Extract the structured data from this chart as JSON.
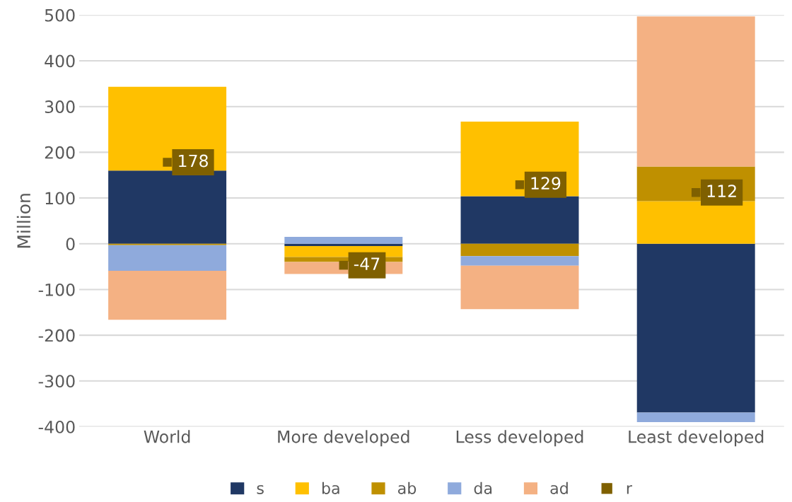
{
  "chart_data": {
    "type": "bar",
    "stacked": true,
    "ylabel": "Million",
    "categories": [
      "World",
      "More developed",
      "Less developed",
      "Least developed"
    ],
    "series": [
      {
        "name": "s",
        "color": "#203864",
        "values": [
          160,
          -5,
          104,
          -369
        ]
      },
      {
        "name": "ba",
        "color": "#ffc000",
        "values": [
          183,
          -24,
          163,
          93
        ]
      },
      {
        "name": "ab",
        "color": "#bf9000",
        "values": [
          -3,
          -11,
          -27,
          76
        ]
      },
      {
        "name": "da",
        "color": "#8faadc",
        "values": [
          -56,
          15,
          -21,
          -21
        ]
      },
      {
        "name": "ad",
        "color": "#f4b183",
        "values": [
          -107,
          -26,
          -95,
          328
        ]
      },
      {
        "name": "r",
        "color": "#7f6000",
        "type": "scatter",
        "marker": "square",
        "values": [
          178,
          -47,
          129,
          112
        ],
        "value_labels": [
          "178",
          "-47",
          "129",
          "112"
        ]
      }
    ],
    "ylim": [
      -400,
      500
    ],
    "yticks": [
      -400,
      -300,
      -200,
      -100,
      0,
      100,
      200,
      300,
      400,
      500
    ],
    "grid": "y",
    "legend": "bottom"
  }
}
